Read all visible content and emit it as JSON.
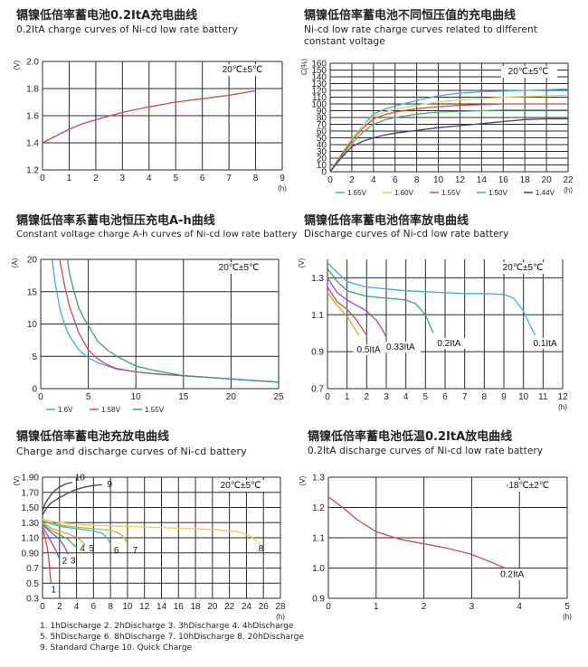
{
  "chart_data": [
    {
      "id": "c1",
      "type": "line",
      "title_cn": "镉镍低倍率蓄电池0.2ItA充电曲线",
      "title": "0.2ItA charge curves of Ni-cd low rate battery",
      "condition": "20℃±5℃",
      "xlabel": "(h)",
      "ylabel": "(V)",
      "xlim": [
        0,
        9
      ],
      "ylim": [
        1.2,
        2.0
      ],
      "xticks": [
        0,
        1,
        2,
        3,
        4,
        5,
        6,
        7,
        8,
        9
      ],
      "yticks": [
        1.2,
        1.4,
        1.6,
        1.8,
        2.0
      ],
      "ytick_labels": [
        "1.2",
        "1.4",
        "1.6",
        "1.8",
        "2.0"
      ],
      "grid": true,
      "series": [
        {
          "name": "",
          "color": "#c84a55",
          "x": [
            0,
            0.5,
            1,
            1.5,
            2,
            3,
            4,
            5,
            6,
            7,
            8
          ],
          "y": [
            1.4,
            1.45,
            1.5,
            1.54,
            1.57,
            1.625,
            1.665,
            1.7,
            1.725,
            1.75,
            1.785
          ]
        }
      ]
    },
    {
      "id": "c2",
      "type": "line",
      "title_cn": "镉镍低倍率蓄电池不同恒压值的充电曲线",
      "title": "Ni-cd low rate charge curves related to different constant voltage",
      "condition": "20℃±5℃",
      "xlabel": "(h)",
      "ylabel": "C(%)",
      "xlim": [
        0,
        22
      ],
      "ylim": [
        0,
        160
      ],
      "xticks": [
        0,
        2,
        4,
        6,
        8,
        10,
        12,
        14,
        16,
        18,
        20,
        22
      ],
      "yticks": [
        0,
        10,
        20,
        30,
        40,
        50,
        60,
        70,
        80,
        90,
        100,
        110,
        120,
        130,
        140,
        150,
        160
      ],
      "ytick_labels": [
        "0",
        "10",
        "20",
        "30",
        "40",
        "50",
        "60",
        "70",
        "80",
        "90",
        "100",
        "110",
        "120",
        "130",
        "140",
        "150",
        "160"
      ],
      "grid": true,
      "legend_position": "bottom",
      "series": [
        {
          "name": "1.65V",
          "color": "#3bb0d6",
          "x": [
            0,
            1,
            2,
            3,
            4,
            5,
            6,
            8,
            10,
            12,
            14,
            16,
            18,
            20,
            22
          ],
          "y": [
            0,
            25,
            48,
            68,
            85,
            92,
            97,
            105,
            112,
            116,
            118,
            119,
            120,
            121,
            122
          ]
        },
        {
          "name": "1.60V",
          "color": "#e6d24a",
          "x": [
            0,
            1,
            2,
            3,
            4,
            5,
            6,
            8,
            10,
            12,
            14,
            16,
            18,
            20,
            22
          ],
          "y": [
            0,
            25,
            48,
            68,
            82,
            88,
            92,
            98,
            103,
            106,
            108,
            110,
            111,
            112,
            113
          ]
        },
        {
          "name": "1.55V",
          "color": "#d04a4a",
          "x": [
            0,
            1,
            2,
            3,
            4,
            5,
            6,
            8,
            10,
            12,
            14,
            16,
            18,
            20,
            22
          ],
          "y": [
            0,
            24,
            46,
            64,
            78,
            84,
            88,
            93,
            96,
            98,
            99,
            100,
            100,
            100,
            100
          ]
        },
        {
          "name": "1.50V",
          "color": "#4cae78",
          "x": [
            0,
            1,
            2,
            3,
            4,
            5,
            6,
            8,
            10,
            12,
            14,
            16,
            18,
            20,
            22
          ],
          "y": [
            0,
            22,
            42,
            58,
            70,
            76,
            80,
            85,
            88,
            89,
            90,
            91,
            91,
            91,
            91
          ]
        },
        {
          "name": "1.44V",
          "color": "#3f3f80",
          "x": [
            0,
            1,
            2,
            3,
            4,
            5,
            6,
            8,
            10,
            12,
            14,
            16,
            18,
            20,
            22
          ],
          "y": [
            0,
            20,
            37,
            45,
            50,
            54,
            57,
            61,
            65,
            68,
            71,
            74,
            77,
            78,
            78
          ]
        }
      ]
    },
    {
      "id": "c3",
      "type": "line",
      "title_cn": "镉镍低倍率系蓄电池恒压充电A-h曲线",
      "title": "Constant voltage charge A-h curves of Ni-cd low rate battery",
      "condition": "20℃±5℃",
      "xlabel": "",
      "ylabel": "(A)",
      "xlim": [
        0,
        25
      ],
      "ylim": [
        0,
        20
      ],
      "xticks": [
        0,
        5,
        10,
        15,
        20,
        25
      ],
      "yticks": [
        0,
        5,
        10,
        15,
        20
      ],
      "ytick_labels": [
        "0",
        "5",
        "10",
        "15",
        "20"
      ],
      "grid": true,
      "legend_position": "bottom",
      "series": [
        {
          "name": "1.6V",
          "color": "#3bb0d6",
          "x": [
            1.2,
            1.5,
            2,
            2.5,
            3,
            4,
            5,
            6,
            8,
            10,
            12,
            15,
            20,
            25
          ],
          "y": [
            20,
            16.5,
            12.5,
            10,
            8.2,
            6.0,
            4.8,
            4.0,
            3.0,
            2.6,
            2.3,
            2.0,
            1.5,
            1.0
          ]
        },
        {
          "name": "1.58V",
          "color": "#d04a4a",
          "x": [
            2,
            2.5,
            3,
            4,
            5,
            6,
            7,
            8,
            10,
            12,
            15,
            20,
            25
          ],
          "y": [
            20,
            16,
            12.8,
            8.6,
            6.0,
            4.6,
            3.7,
            3.1,
            2.6,
            2.3,
            2.0,
            1.5,
            1.0
          ]
        },
        {
          "name": "1.55V",
          "color": "#3aa070",
          "x": [
            2.8,
            3,
            3.5,
            4,
            4.5,
            5,
            6,
            7,
            8,
            10,
            12,
            15,
            20,
            25
          ],
          "y": [
            20,
            18,
            15,
            12.5,
            11,
            9.8,
            7.3,
            6.0,
            5.0,
            3.5,
            2.8,
            2.0,
            1.5,
            1.0
          ]
        }
      ]
    },
    {
      "id": "c4",
      "type": "line",
      "title_cn": "镉镍低倍率蓄电池倍率放电曲线",
      "title": "Discharge curves of Ni-cd low rate battery",
      "condition": "20℃±5℃",
      "xlabel": "(h)",
      "ylabel": "(V)",
      "xlim": [
        0,
        12
      ],
      "ylim": [
        0.7,
        1.4
      ],
      "xticks": [
        0,
        1,
        2,
        3,
        4,
        5,
        6,
        7,
        8,
        9,
        10,
        11,
        12
      ],
      "yticks": [
        0.7,
        0.9,
        1.1,
        1.3
      ],
      "ytick_labels": [
        "0.7",
        "0.9",
        "1.1",
        "1.3"
      ],
      "grid": true,
      "series": [
        {
          "name": "0.1ItA",
          "color": "#3bb0d6",
          "x": [
            0,
            0.5,
            1,
            2,
            3,
            4,
            5,
            6,
            7,
            8,
            9,
            9.5,
            10,
            10.3,
            10.6
          ],
          "y": [
            1.38,
            1.33,
            1.28,
            1.25,
            1.24,
            1.23,
            1.225,
            1.22,
            1.215,
            1.215,
            1.21,
            1.19,
            1.12,
            1.05,
            0.99
          ]
        },
        {
          "name": "0.2ItA",
          "color": "#3aa070",
          "x": [
            0,
            0.5,
            1,
            2,
            3,
            4,
            4.5,
            5,
            5.2,
            5.4
          ],
          "y": [
            1.35,
            1.28,
            1.23,
            1.2,
            1.19,
            1.18,
            1.16,
            1.1,
            1.05,
            1.0
          ]
        },
        {
          "name": "0.33ItA",
          "color": "#9a4ac0",
          "x": [
            0,
            0.5,
            1,
            1.5,
            2,
            2.5,
            2.8,
            3.0
          ],
          "y": [
            1.3,
            1.22,
            1.18,
            1.15,
            1.12,
            1.07,
            1.02,
            0.98
          ]
        },
        {
          "name": "0.5ItA",
          "color": "#d04a4a",
          "x": [
            0,
            0.5,
            1,
            1.5,
            1.8,
            2.0
          ],
          "y": [
            1.25,
            1.17,
            1.13,
            1.07,
            1.02,
            0.99
          ]
        },
        {
          "name": "",
          "color": "#e6a030",
          "x": [
            0,
            0.5,
            1,
            1.3,
            1.6
          ],
          "y": [
            1.22,
            1.15,
            1.09,
            1.04,
            0.99
          ]
        }
      ],
      "annotations": [
        "0.5ItA",
        "0.33ItA",
        "0.2ItA",
        "0.1ItA"
      ]
    },
    {
      "id": "c5",
      "type": "line",
      "title_cn": "镉镍低倍率蓄电池充放电曲线",
      "title": "Charge and discharge curves of  Ni-cd battery",
      "condition": "20℃±5℃",
      "xlabel": "(h)",
      "ylabel": "(V)",
      "xlim": [
        0,
        28
      ],
      "ylim": [
        0.3,
        1.9
      ],
      "xticks": [
        0,
        2,
        4,
        6,
        8,
        10,
        12,
        14,
        16,
        18,
        20,
        22,
        24,
        26,
        28
      ],
      "yticks": [
        0.3,
        0.5,
        0.7,
        0.9,
        1.1,
        1.3,
        1.5,
        1.7,
        1.9
      ],
      "ytick_labels": [
        "0.3",
        "0.5",
        "0.7",
        "0.90",
        "1.10",
        "1.30",
        "1.50",
        "1.70",
        "1.90"
      ],
      "grid": true,
      "notes": [
        "1. 1hDischarge  2. 2hDischarge  3. 3hDischarge  4. 4hDischarge",
        "5. 5hDischarge  6. 8hDischarge  7. 10hDischarge  8. 20hDischarge",
        "9. Standard Charge  10. Quick Charge"
      ],
      "series": [
        {
          "name": "1",
          "color": "#d04a4a",
          "x": [
            0,
            0.3,
            0.6,
            0.8,
            0.9,
            1.0
          ],
          "y": [
            1.22,
            1.1,
            0.95,
            0.75,
            0.6,
            0.5
          ]
        },
        {
          "name": "2",
          "color": "#9a4ac0",
          "x": [
            0,
            0.5,
            1,
            1.5,
            1.8,
            2.0
          ],
          "y": [
            1.25,
            1.15,
            1.05,
            0.95,
            0.88,
            0.82
          ]
        },
        {
          "name": "3",
          "color": "#7060b0",
          "x": [
            0,
            1,
            2,
            2.5,
            2.8,
            3.0
          ],
          "y": [
            1.27,
            1.17,
            1.08,
            1.0,
            0.93,
            0.88
          ]
        },
        {
          "name": "4",
          "color": "#4caf60",
          "x": [
            0,
            1,
            2,
            3,
            3.5,
            4.0
          ],
          "y": [
            1.28,
            1.2,
            1.14,
            1.08,
            1.02,
            0.97
          ]
        },
        {
          "name": "5",
          "color": "#e6a030",
          "x": [
            0,
            1,
            2,
            3,
            4,
            4.6,
            5.0
          ],
          "y": [
            1.3,
            1.23,
            1.19,
            1.15,
            1.11,
            1.06,
            1.0
          ]
        },
        {
          "name": "6",
          "color": "#3bb0d6",
          "x": [
            0,
            2,
            4,
            6,
            7,
            7.6,
            8.0
          ],
          "y": [
            1.32,
            1.25,
            1.22,
            1.19,
            1.16,
            1.1,
            1.02
          ]
        },
        {
          "name": "7",
          "color": "#a0c040",
          "x": [
            0,
            2,
            4,
            6,
            8,
            9,
            9.6,
            10.0
          ],
          "y": [
            1.33,
            1.27,
            1.24,
            1.22,
            1.2,
            1.16,
            1.1,
            1.03
          ]
        },
        {
          "name": "8",
          "color": "#e6d24a",
          "x": [
            0,
            2,
            5,
            10,
            15,
            20,
            23,
            24.5,
            25.3
          ],
          "y": [
            1.35,
            1.3,
            1.27,
            1.25,
            1.23,
            1.21,
            1.18,
            1.12,
            1.05
          ]
        },
        {
          "name": "9",
          "color": "#444444",
          "x": [
            0,
            0.5,
            1,
            2,
            3,
            4,
            5,
            6,
            7
          ],
          "y": [
            1.4,
            1.5,
            1.56,
            1.63,
            1.69,
            1.74,
            1.77,
            1.79,
            1.8
          ]
        },
        {
          "name": "10",
          "color": "#444444",
          "x": [
            0,
            0.3,
            0.7,
            1,
            1.5,
            2,
            2.5,
            3,
            3.5
          ],
          "y": [
            1.45,
            1.55,
            1.62,
            1.67,
            1.73,
            1.77,
            1.8,
            1.82,
            1.83
          ]
        }
      ]
    },
    {
      "id": "c6",
      "type": "line",
      "title_cn": "镉镍低倍率蓄电池低温0.2ItA放电曲线",
      "title": "0.2ItA discharge curves of Ni-cd low rate battery",
      "condition": "-18℃±2℃",
      "xlabel": "(h)",
      "ylabel": "(V)",
      "xlim": [
        0,
        5
      ],
      "ylim": [
        0.9,
        1.3
      ],
      "xticks": [
        0,
        1,
        2,
        3,
        4,
        5
      ],
      "yticks": [
        0.9,
        1.0,
        1.1,
        1.2,
        1.3
      ],
      "ytick_labels": [
        "0.9",
        "1.0",
        "1.1",
        "1.2",
        "1.3"
      ],
      "grid": true,
      "series": [
        {
          "name": "0.2ItA",
          "color": "#c84a55",
          "x": [
            0,
            0.3,
            0.6,
            1,
            1.5,
            2,
            2.5,
            3,
            3.4,
            3.7
          ],
          "y": [
            1.235,
            1.2,
            1.16,
            1.12,
            1.095,
            1.08,
            1.065,
            1.045,
            1.02,
            1.0
          ]
        }
      ]
    }
  ]
}
